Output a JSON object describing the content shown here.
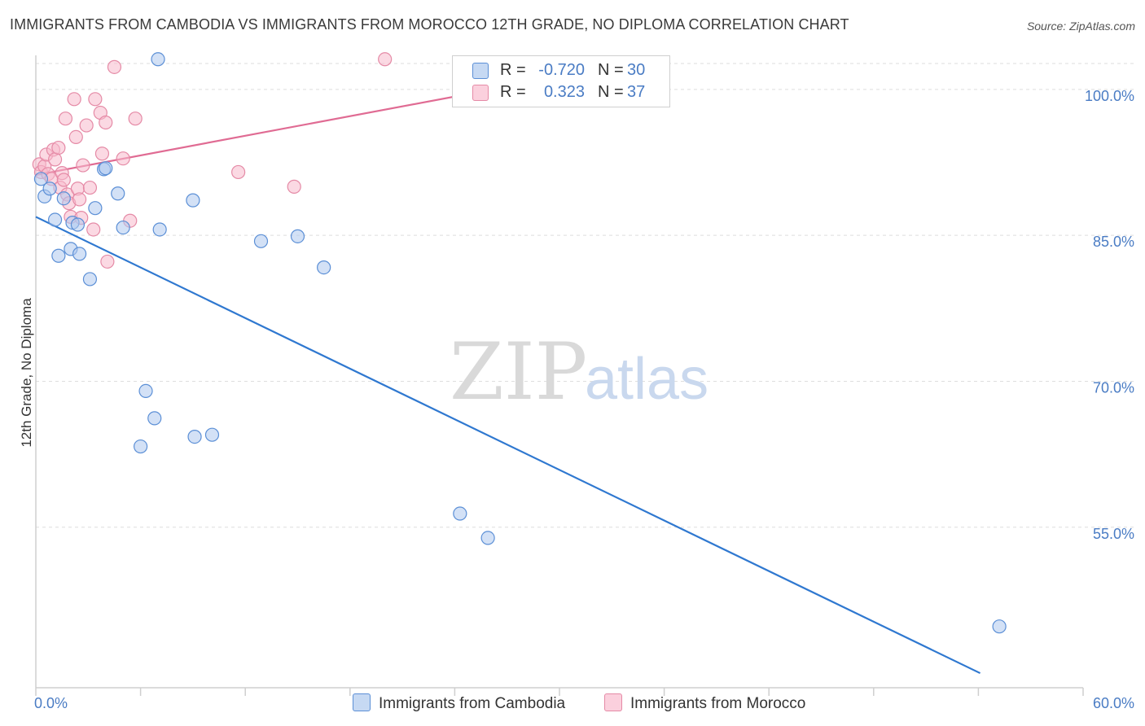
{
  "title": "IMMIGRANTS FROM CAMBODIA VS IMMIGRANTS FROM MOROCCO 12TH GRADE, NO DIPLOMA CORRELATION CHART",
  "source": "Source: ZipAtlas.com",
  "watermark": {
    "zip": "ZIP",
    "atlas": "atlas"
  },
  "colors": {
    "cambodia_fill": "#aec8ef",
    "cambodia_stroke": "#5b8fd6",
    "cambodia_line": "#2f78d0",
    "morocco_fill": "#f7b9cc",
    "morocco_stroke": "#e58aa6",
    "morocco_line": "#e06b93",
    "tick_text": "#4a7cc4"
  },
  "legend": {
    "series": [
      {
        "name": "Immigrants from Cambodia",
        "r_label": "R =",
        "r_value": "-0.720",
        "n_label": "N =",
        "n_value": "30"
      },
      {
        "name": "Immigrants from Morocco",
        "r_label": "R =",
        "r_value": "0.323",
        "n_label": "N =",
        "n_value": "37"
      }
    ]
  },
  "chart_data": {
    "type": "scatter",
    "title": "IMMIGRANTS FROM CAMBODIA VS IMMIGRANTS FROM MOROCCO 12TH GRADE, NO DIPLOMA CORRELATION CHART",
    "xlabel": "",
    "ylabel": "12th Grade, No Diploma",
    "xlim": [
      0,
      60
    ],
    "ylim": [
      38.5,
      103.5
    ],
    "x_tick_labels": [
      "0.0%",
      "60.0%"
    ],
    "y_ticks": [
      55,
      70,
      85,
      100
    ],
    "y_tick_labels": [
      "55.0%",
      "70.0%",
      "85.0%",
      "100.0%"
    ],
    "grid": true,
    "legend_position": "top-center",
    "series": [
      {
        "name": "Immigrants from Cambodia",
        "r": -0.72,
        "n": 30,
        "points": [
          [
            0.3,
            90.8
          ],
          [
            0.5,
            89.0
          ],
          [
            0.8,
            89.8
          ],
          [
            1.1,
            86.6
          ],
          [
            1.3,
            82.9
          ],
          [
            1.6,
            88.8
          ],
          [
            2.1,
            86.3
          ],
          [
            2.0,
            83.6
          ],
          [
            2.5,
            83.1
          ],
          [
            2.4,
            86.1
          ],
          [
            3.1,
            80.5
          ],
          [
            3.4,
            87.8
          ],
          [
            3.9,
            91.8
          ],
          [
            4.0,
            91.9
          ],
          [
            4.7,
            89.3
          ],
          [
            5.0,
            85.8
          ],
          [
            6.0,
            63.3
          ],
          [
            6.3,
            69.0
          ],
          [
            6.8,
            66.2
          ],
          [
            7.0,
            103.1
          ],
          [
            7.1,
            85.6
          ],
          [
            9.0,
            88.6
          ],
          [
            9.1,
            64.3
          ],
          [
            10.1,
            64.5
          ],
          [
            12.9,
            84.4
          ],
          [
            15.0,
            84.9
          ],
          [
            16.5,
            81.7
          ],
          [
            24.3,
            56.4
          ],
          [
            25.9,
            53.9
          ],
          [
            55.2,
            44.8
          ]
        ]
      },
      {
        "name": "Immigrants from Morocco",
        "r": 0.323,
        "n": 37,
        "points": [
          [
            0.2,
            92.3
          ],
          [
            0.3,
            91.5
          ],
          [
            0.5,
            92.1
          ],
          [
            0.6,
            93.3
          ],
          [
            0.7,
            91.3
          ],
          [
            0.9,
            90.8
          ],
          [
            1.0,
            93.8
          ],
          [
            1.1,
            92.8
          ],
          [
            1.3,
            94.0
          ],
          [
            1.4,
            89.9
          ],
          [
            1.5,
            91.4
          ],
          [
            1.6,
            90.7
          ],
          [
            1.7,
            97.0
          ],
          [
            1.8,
            89.2
          ],
          [
            1.9,
            88.3
          ],
          [
            2.0,
            86.9
          ],
          [
            2.2,
            99.0
          ],
          [
            2.3,
            95.1
          ],
          [
            2.4,
            89.8
          ],
          [
            2.5,
            88.7
          ],
          [
            2.6,
            86.8
          ],
          [
            2.7,
            92.2
          ],
          [
            2.9,
            96.3
          ],
          [
            3.1,
            89.9
          ],
          [
            3.3,
            85.6
          ],
          [
            3.4,
            99.0
          ],
          [
            3.7,
            97.6
          ],
          [
            3.8,
            93.4
          ],
          [
            4.0,
            96.6
          ],
          [
            4.1,
            82.3
          ],
          [
            4.5,
            102.3
          ],
          [
            5.0,
            92.9
          ],
          [
            5.4,
            86.5
          ],
          [
            5.7,
            97.0
          ],
          [
            11.6,
            91.5
          ],
          [
            14.8,
            90.0
          ],
          [
            20.0,
            103.1
          ]
        ]
      }
    ],
    "trend_lines": [
      {
        "series": "Immigrants from Cambodia",
        "from": [
          0,
          86.9
        ],
        "to": [
          54.1,
          40.0
        ]
      },
      {
        "series": "Immigrants from Morocco",
        "from": [
          0,
          91.2
        ],
        "to": [
          25.0,
          99.6
        ]
      }
    ]
  }
}
